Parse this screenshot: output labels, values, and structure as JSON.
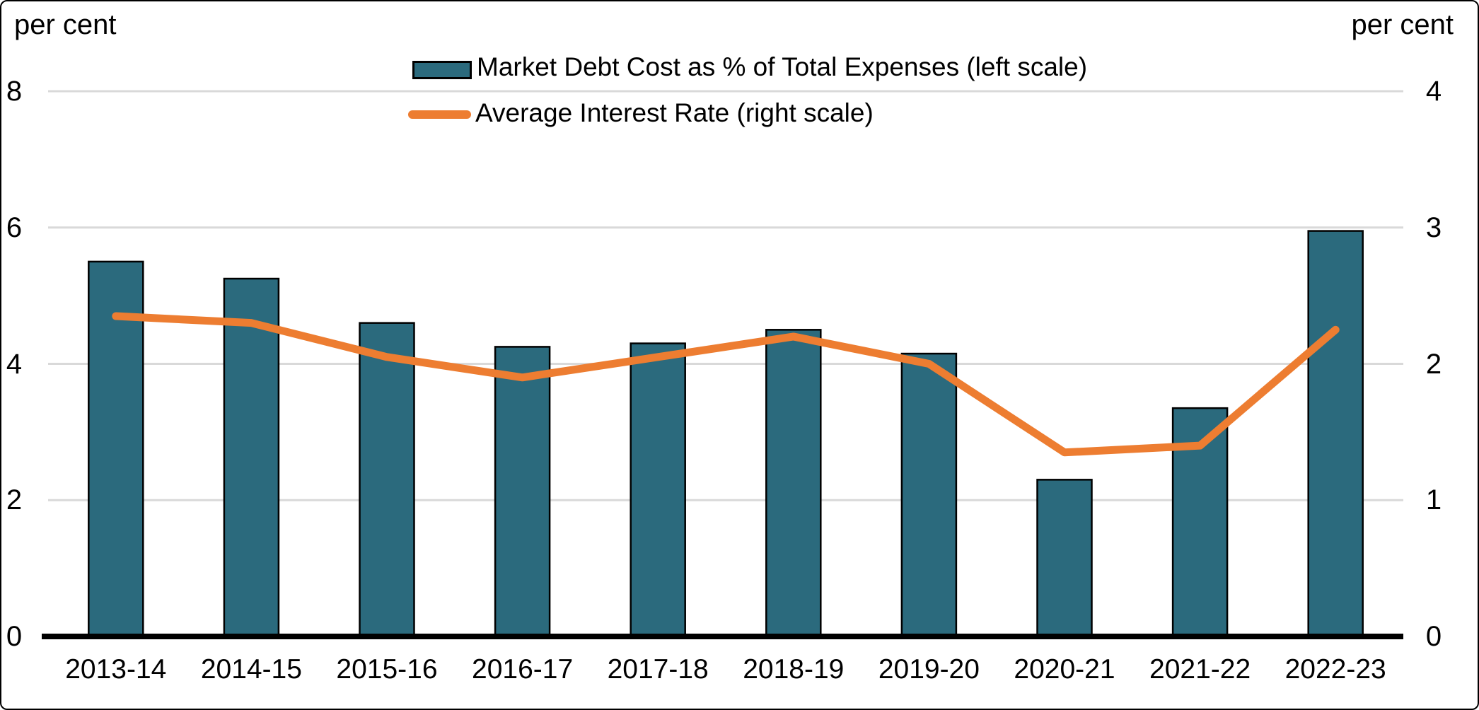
{
  "page": {
    "left_axis_title": "per cent",
    "right_axis_title": "per cent"
  },
  "legend": {
    "bar_label": "Market Debt Cost as % of Total Expenses (left scale)",
    "line_label": "Average Interest Rate (right scale)"
  },
  "colors": {
    "bar_fill": "#2B6A7D",
    "bar_border": "#000000",
    "line": "#ED7D31",
    "gridline": "#D9D9D9",
    "axis_line": "#000000"
  },
  "chart_data": {
    "type": "bar+line dual-axis combo",
    "categories": [
      "2013-14",
      "2014-15",
      "2015-16",
      "2016-17",
      "2017-18",
      "2018-19",
      "2019-20",
      "2020-21",
      "2021-22",
      "2022-23"
    ],
    "series": [
      {
        "name": "Market Debt Cost as % of Total Expenses (left scale)",
        "type": "bar",
        "axis": "left",
        "color": "#2B6A7D",
        "values": [
          5.5,
          5.25,
          4.6,
          4.25,
          4.3,
          4.5,
          4.15,
          2.3,
          3.35,
          5.95
        ]
      },
      {
        "name": "Average Interest Rate (right scale)",
        "type": "line",
        "axis": "right",
        "color": "#ED7D31",
        "values": [
          2.35,
          2.3,
          2.05,
          1.9,
          2.05,
          2.2,
          2.0,
          1.35,
          1.4,
          2.25
        ]
      }
    ],
    "left_axis": {
      "title": "per cent",
      "min": 0,
      "max": 8,
      "ticks": [
        0,
        2,
        4,
        6,
        8
      ]
    },
    "right_axis": {
      "title": "per cent",
      "min": 0,
      "max": 4,
      "ticks": [
        0,
        1,
        2,
        3,
        4
      ]
    },
    "grid": true,
    "legend_position": "top-center"
  }
}
